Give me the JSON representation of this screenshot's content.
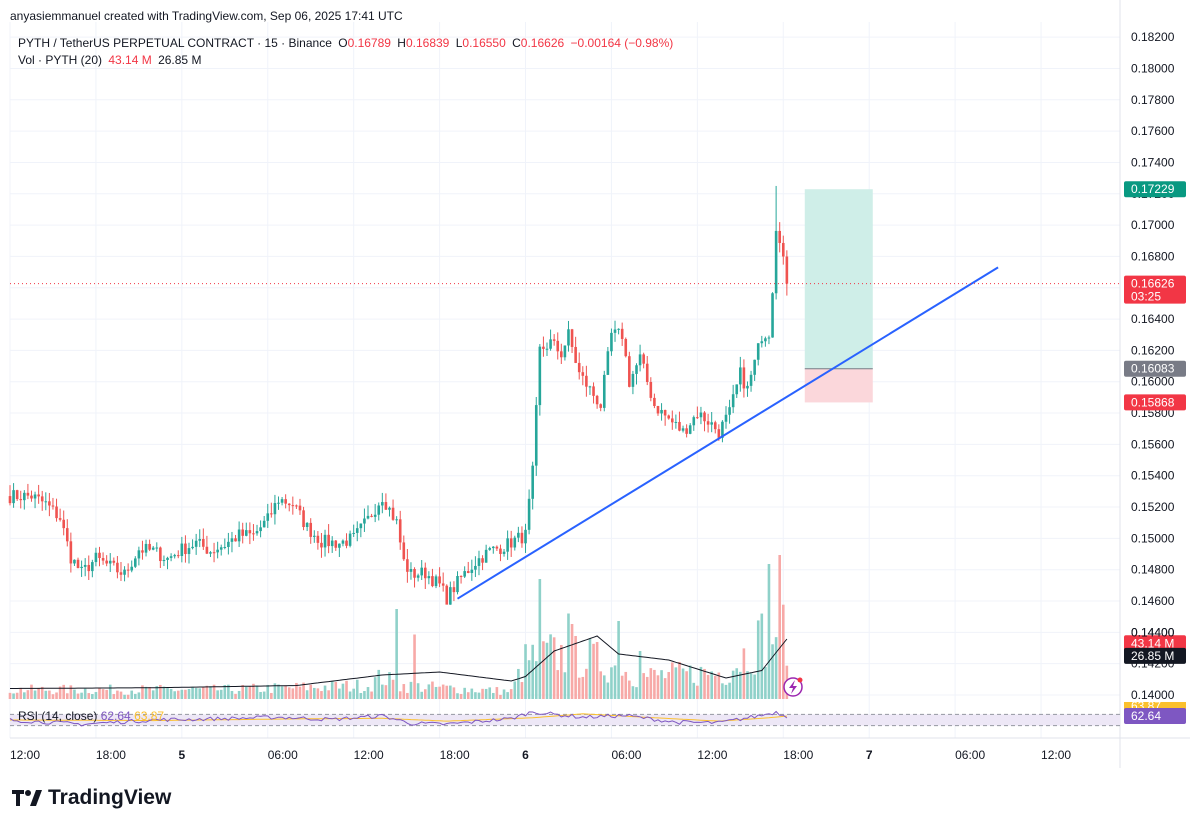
{
  "header": {
    "credit": "anyasiemmanuel created with TradingView.com, Sep 06, 2025 17:41 UTC"
  },
  "legend": {
    "symbol": "PYTH / TetherUS PERPETUAL CONTRACT · 15 · Binance",
    "o_label": "O",
    "o_value": "0.16789",
    "h_label": "H",
    "h_value": "0.16839",
    "l_label": "L",
    "l_value": "0.16550",
    "c_label": "C",
    "c_value": "0.16626",
    "change": "−0.00164 (−0.98%)",
    "vol_label": "Vol · PYTH (20)",
    "vol_value": "43.14 M",
    "vol_ma_value": "26.85 M"
  },
  "rsi_legend": {
    "label": "RSI (14, close)",
    "rsi_value": "62.64",
    "ma_value": "63.87"
  },
  "brand": {
    "name": "TradingView",
    "logo_icon": "tradingview-logo-icon"
  },
  "colors": {
    "up": "#26a69a",
    "down": "#ef5350",
    "up_vol": "#8fd1c9",
    "down_vol": "#f7a9a7",
    "trendline": "#2962ff",
    "rsi": "#7e57c2",
    "rsi_ma": "#fbc02d",
    "target_zone": "#cfeee8",
    "stop_zone": "#fbd7db"
  },
  "chart_data": {
    "type": "candlestick",
    "y_axis": {
      "range": [
        0.139,
        0.1825
      ],
      "ticks": [
        "0.18200",
        "0.18000",
        "0.17800",
        "0.17600",
        "0.17400",
        "0.17200",
        "0.17000",
        "0.16800",
        "0.16600",
        "0.16400",
        "0.16200",
        "0.16000",
        "0.15800",
        "0.15600",
        "0.15400",
        "0.15200",
        "0.15000",
        "0.14800",
        "0.14600",
        "0.14400",
        "0.14200",
        "0.14000"
      ],
      "price_tags": [
        {
          "label": "0.17229",
          "value": 0.17229,
          "color": "#089981"
        },
        {
          "label": "0.16626",
          "value": 0.16626,
          "color": "#f23645",
          "sub": "03:25"
        },
        {
          "label": "0.16083",
          "value": 0.16083,
          "color": "#787b86"
        },
        {
          "label": "0.15868",
          "value": 0.15868,
          "color": "#f23645"
        },
        {
          "label": "43.14 M",
          "at_value": 0.1433,
          "color": "#f23645"
        },
        {
          "label": "26.85 M",
          "at_value": 0.1425,
          "color": "#131722"
        }
      ],
      "rsi_tag": {
        "label": "62.64",
        "color": "#7e57c2"
      },
      "overlapped_labels": [
        "0.14400",
        "63.87"
      ]
    },
    "x_axis": {
      "labels": [
        {
          "label": "12:00",
          "slot": 0
        },
        {
          "label": "18:00",
          "slot": 24
        },
        {
          "label": "5",
          "slot": 48
        },
        {
          "label": "06:00",
          "slot": 72
        },
        {
          "label": "12:00",
          "slot": 96
        },
        {
          "label": "18:00",
          "slot": 120
        },
        {
          "label": "6",
          "slot": 144
        },
        {
          "label": "06:00",
          "slot": 168
        },
        {
          "label": "12:00",
          "slot": 192
        },
        {
          "label": "18:00",
          "slot": 216
        },
        {
          "label": "7",
          "slot": 240
        },
        {
          "label": "06:00",
          "slot": 264
        },
        {
          "label": "12:00",
          "slot": 288
        }
      ]
    },
    "last_price": 0.16626,
    "close_path": [
      [
        0,
        0.1527
      ],
      [
        6,
        0.1527
      ],
      [
        10,
        0.1522
      ],
      [
        14,
        0.1513
      ],
      [
        17,
        0.1488
      ],
      [
        20,
        0.1478
      ],
      [
        24,
        0.1487
      ],
      [
        28,
        0.1482
      ],
      [
        32,
        0.1477
      ],
      [
        36,
        0.1493
      ],
      [
        40,
        0.1492
      ],
      [
        44,
        0.1487
      ],
      [
        48,
        0.1493
      ],
      [
        52,
        0.1497
      ],
      [
        56,
        0.1492
      ],
      [
        60,
        0.1496
      ],
      [
        64,
        0.1502
      ],
      [
        68,
        0.1502
      ],
      [
        72,
        0.1512
      ],
      [
        75,
        0.1525
      ],
      [
        79,
        0.1522
      ],
      [
        83,
        0.1507
      ],
      [
        87,
        0.1498
      ],
      [
        92,
        0.1497
      ],
      [
        96,
        0.15
      ],
      [
        100,
        0.1512
      ],
      [
        104,
        0.1527
      ],
      [
        108,
        0.151
      ],
      [
        110,
        0.1485
      ],
      [
        112,
        0.1477
      ],
      [
        116,
        0.1478
      ],
      [
        120,
        0.147
      ],
      [
        122,
        0.1462
      ],
      [
        126,
        0.1475
      ],
      [
        130,
        0.1485
      ],
      [
        134,
        0.1492
      ],
      [
        138,
        0.1495
      ],
      [
        142,
        0.15
      ],
      [
        144,
        0.1502
      ],
      [
        146,
        0.1542
      ],
      [
        148,
        0.162
      ],
      [
        151,
        0.1625
      ],
      [
        154,
        0.1618
      ],
      [
        156,
        0.163
      ],
      [
        159,
        0.1605
      ],
      [
        162,
        0.1595
      ],
      [
        165,
        0.1585
      ],
      [
        168,
        0.163
      ],
      [
        171,
        0.163
      ],
      [
        173,
        0.16
      ],
      [
        176,
        0.1615
      ],
      [
        180,
        0.1585
      ],
      [
        184,
        0.1576
      ],
      [
        188,
        0.1568
      ],
      [
        192,
        0.158
      ],
      [
        195,
        0.1575
      ],
      [
        198,
        0.1568
      ],
      [
        201,
        0.158
      ],
      [
        204,
        0.1605
      ],
      [
        206,
        0.1595
      ],
      [
        208,
        0.1612
      ],
      [
        210,
        0.163
      ],
      [
        212,
        0.1632
      ],
      [
        213,
        0.166
      ],
      [
        214,
        0.17
      ],
      [
        215,
        0.1693
      ],
      [
        216,
        0.1679
      ],
      [
        217,
        0.16626
      ]
    ],
    "volume": {
      "levels": [
        [
          0,
          0.62
        ],
        [
          60,
          0.62
        ],
        [
          100,
          0.9
        ],
        [
          104,
          1.5
        ],
        [
          108,
          0.9
        ],
        [
          140,
          0.5
        ],
        [
          144,
          2.5
        ],
        [
          150,
          3.0
        ],
        [
          162,
          2.7
        ],
        [
          176,
          1.5
        ],
        [
          200,
          1.8
        ],
        [
          212,
          4.5
        ],
        [
          217,
          4.8
        ]
      ],
      "spikes": [
        [
          108,
          6.0
        ],
        [
          113,
          4.3
        ],
        [
          148,
          8.0
        ],
        [
          156,
          5.7
        ],
        [
          157,
          5.0
        ],
        [
          170,
          5.2
        ],
        [
          176,
          3.2
        ],
        [
          212,
          9.0
        ],
        [
          215,
          9.6
        ]
      ],
      "ma": [
        [
          0,
          0.7
        ],
        [
          40,
          0.75
        ],
        [
          80,
          0.9
        ],
        [
          104,
          1.6
        ],
        [
          120,
          1.8
        ],
        [
          140,
          1.2
        ],
        [
          144,
          1.5
        ],
        [
          152,
          3.2
        ],
        [
          164,
          4.2
        ],
        [
          170,
          3.0
        ],
        [
          184,
          2.6
        ],
        [
          200,
          1.4
        ],
        [
          210,
          1.9
        ],
        [
          217,
          4.0
        ]
      ]
    },
    "rsi": {
      "range": [
        0,
        100
      ],
      "bands": [
        30,
        70
      ],
      "last": 62.64,
      "ma_last": 63.87,
      "points": [
        [
          0,
          50
        ],
        [
          20,
          35
        ],
        [
          40,
          50
        ],
        [
          60,
          55
        ],
        [
          75,
          60
        ],
        [
          90,
          52
        ],
        [
          104,
          65
        ],
        [
          112,
          38
        ],
        [
          122,
          35
        ],
        [
          140,
          55
        ],
        [
          146,
          80
        ],
        [
          152,
          70
        ],
        [
          160,
          60
        ],
        [
          172,
          66
        ],
        [
          186,
          42
        ],
        [
          198,
          40
        ],
        [
          208,
          62
        ],
        [
          214,
          78
        ],
        [
          217,
          62.64
        ]
      ],
      "ma_points": [
        [
          0,
          50
        ],
        [
          40,
          48
        ],
        [
          80,
          54
        ],
        [
          104,
          56
        ],
        [
          122,
          46
        ],
        [
          146,
          58
        ],
        [
          160,
          72
        ],
        [
          180,
          58
        ],
        [
          198,
          46
        ],
        [
          212,
          58
        ],
        [
          217,
          63.87
        ]
      ]
    },
    "trendline": {
      "start": [
        125,
        0.14615
      ],
      "end": [
        276,
        0.1673
      ]
    },
    "position": {
      "slot_start": 222,
      "slot_end": 241,
      "entry": 0.16083,
      "target": 0.17229,
      "stop": 0.15868
    }
  }
}
